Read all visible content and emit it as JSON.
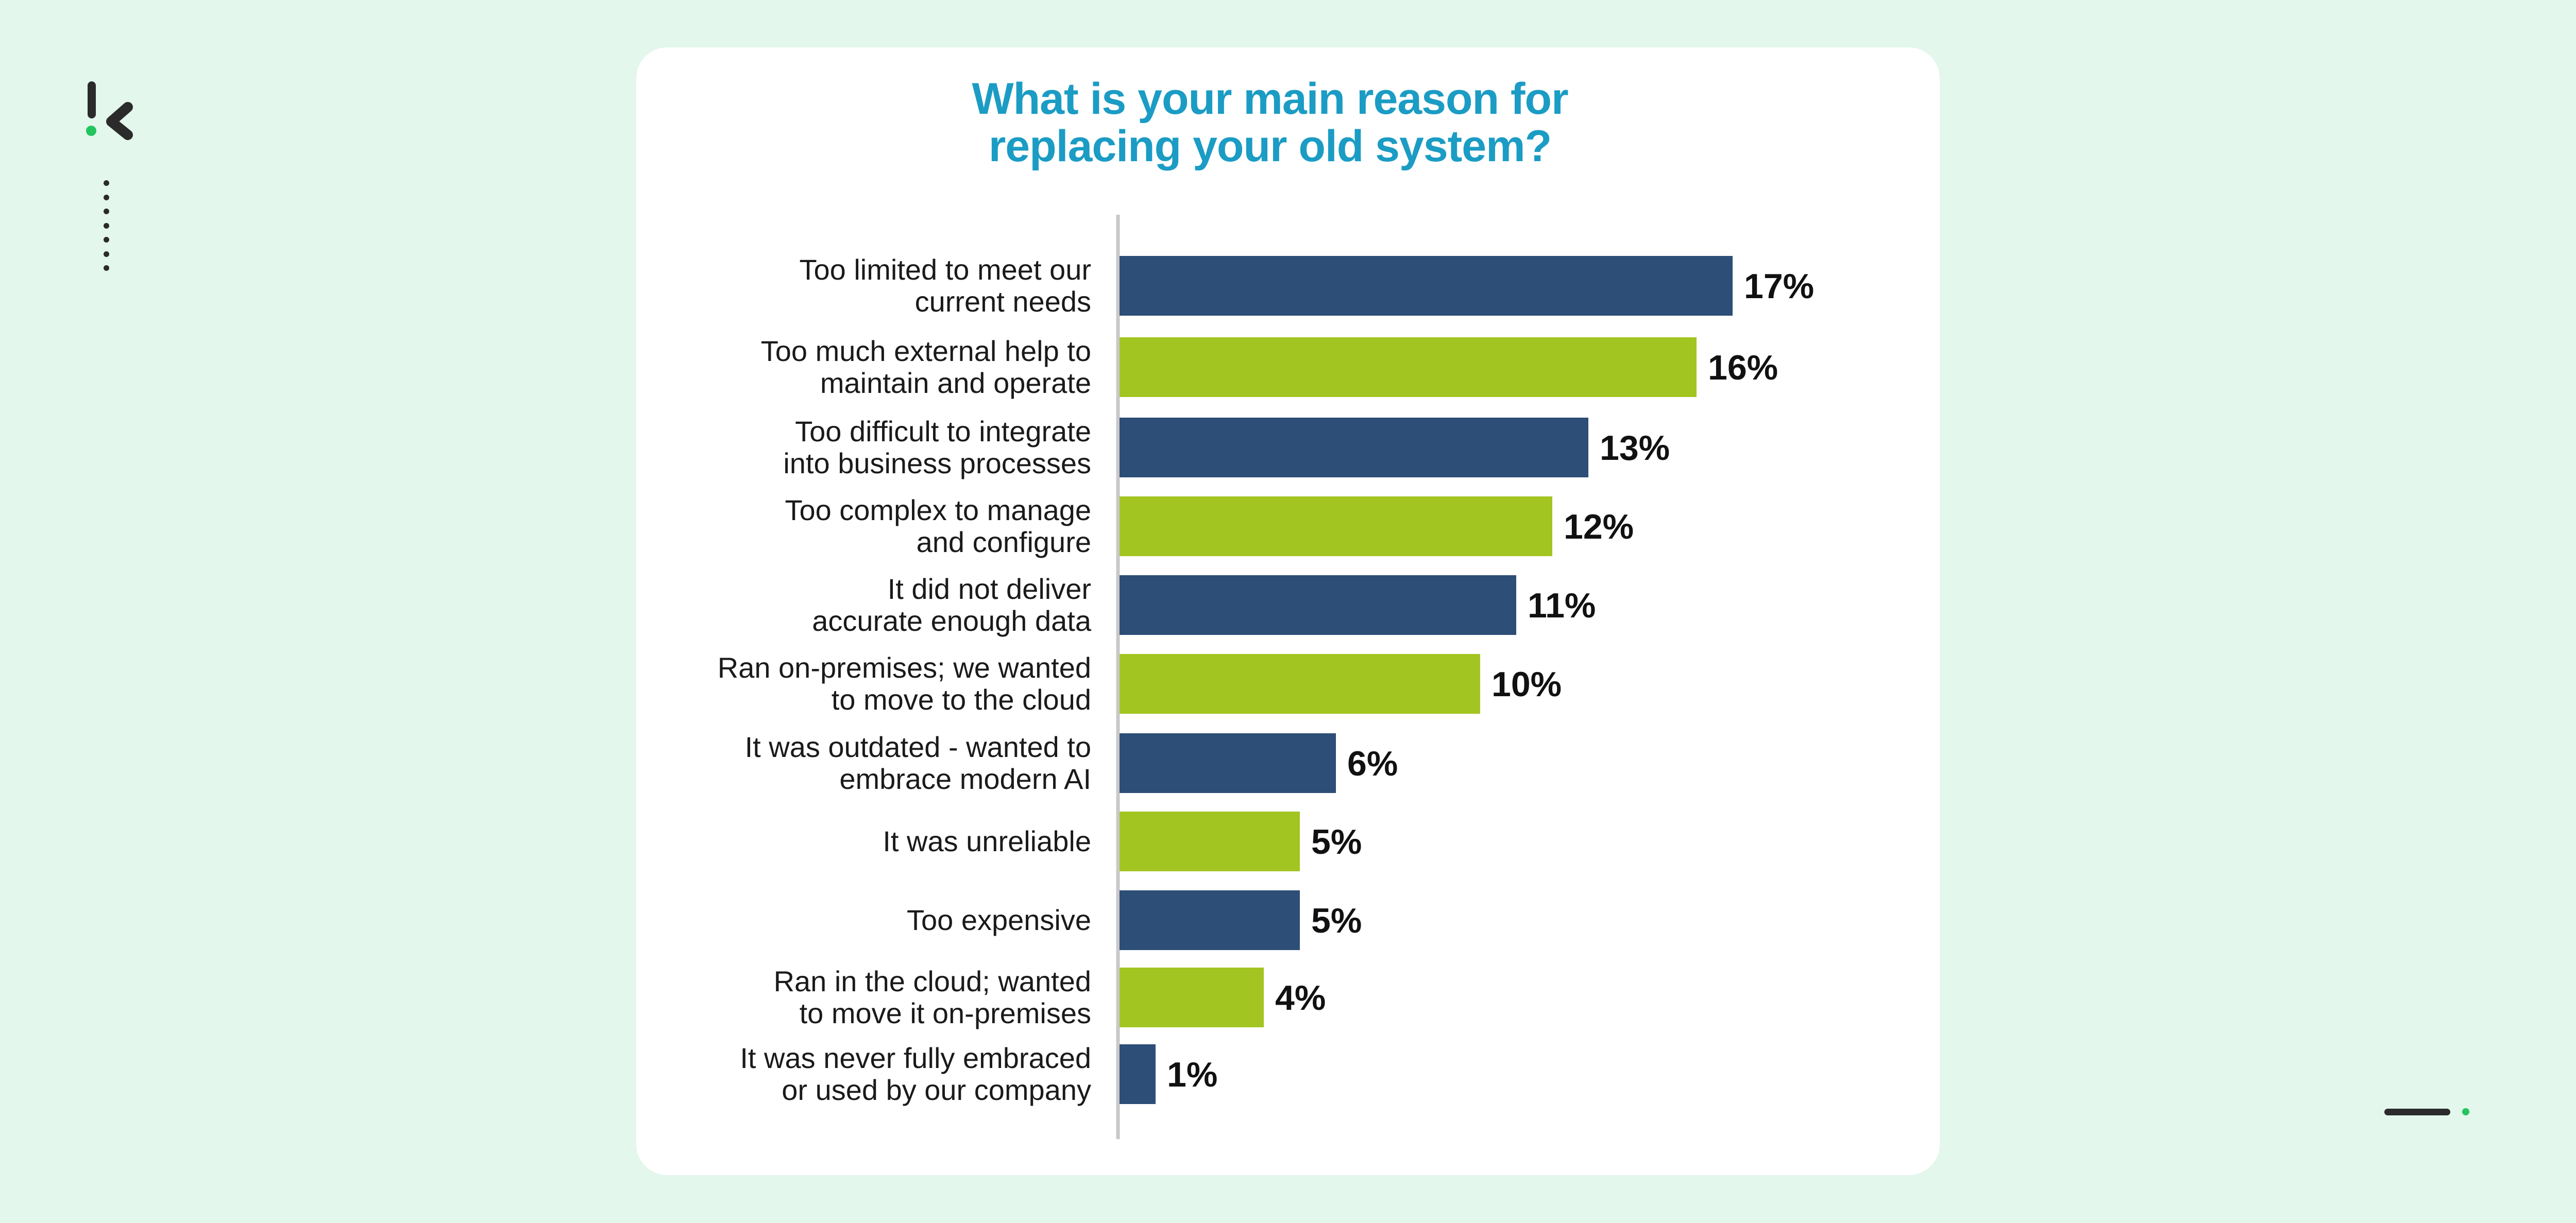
{
  "colors": {
    "background": "#e3f7ec",
    "card": "#ffffff",
    "title": "#1b9cc4",
    "bar_navy": "#2c4e77",
    "bar_green": "#a3c521",
    "axis": "#c8c8c8",
    "logo_dark": "#2b2b2b",
    "logo_green": "#22c55e"
  },
  "icons": {
    "logo": "k-logo-icon",
    "menu": "vertical-dots-icon",
    "pager": "slide-pager-icon"
  },
  "chart_data": {
    "type": "bar",
    "orientation": "horizontal",
    "title": "What is your main reason for\nreplacing your old system?",
    "xlabel": "",
    "ylabel": "",
    "unit": "%",
    "xlim": [
      0,
      17
    ],
    "grid": false,
    "legend": "none",
    "categories": [
      "Too limited to meet our\ncurrent needs",
      "Too much external help to\nmaintain and operate",
      "Too difficult to integrate\ninto business processes",
      "Too complex to manage\nand configure",
      "It did not deliver\naccurate enough data",
      "Ran on-premises; we wanted\nto move to the cloud",
      "It was outdated - wanted to\nembrace modern AI",
      "It was unreliable",
      "Too expensive",
      "Ran in the cloud; wanted\nto move it on-premises",
      "It was never fully embraced\nor used by our company"
    ],
    "values": [
      17,
      16,
      13,
      12,
      11,
      10,
      6,
      5,
      5,
      4,
      1
    ],
    "value_labels": [
      "17%",
      "16%",
      "13%",
      "12%",
      "11%",
      "10%",
      "6%",
      "5%",
      "5%",
      "4%",
      "1%"
    ],
    "bar_colors": [
      "#2c4e77",
      "#a3c521",
      "#2c4e77",
      "#a3c521",
      "#2c4e77",
      "#a3c521",
      "#2c4e77",
      "#a3c521",
      "#2c4e77",
      "#a3c521",
      "#2c4e77"
    ]
  }
}
